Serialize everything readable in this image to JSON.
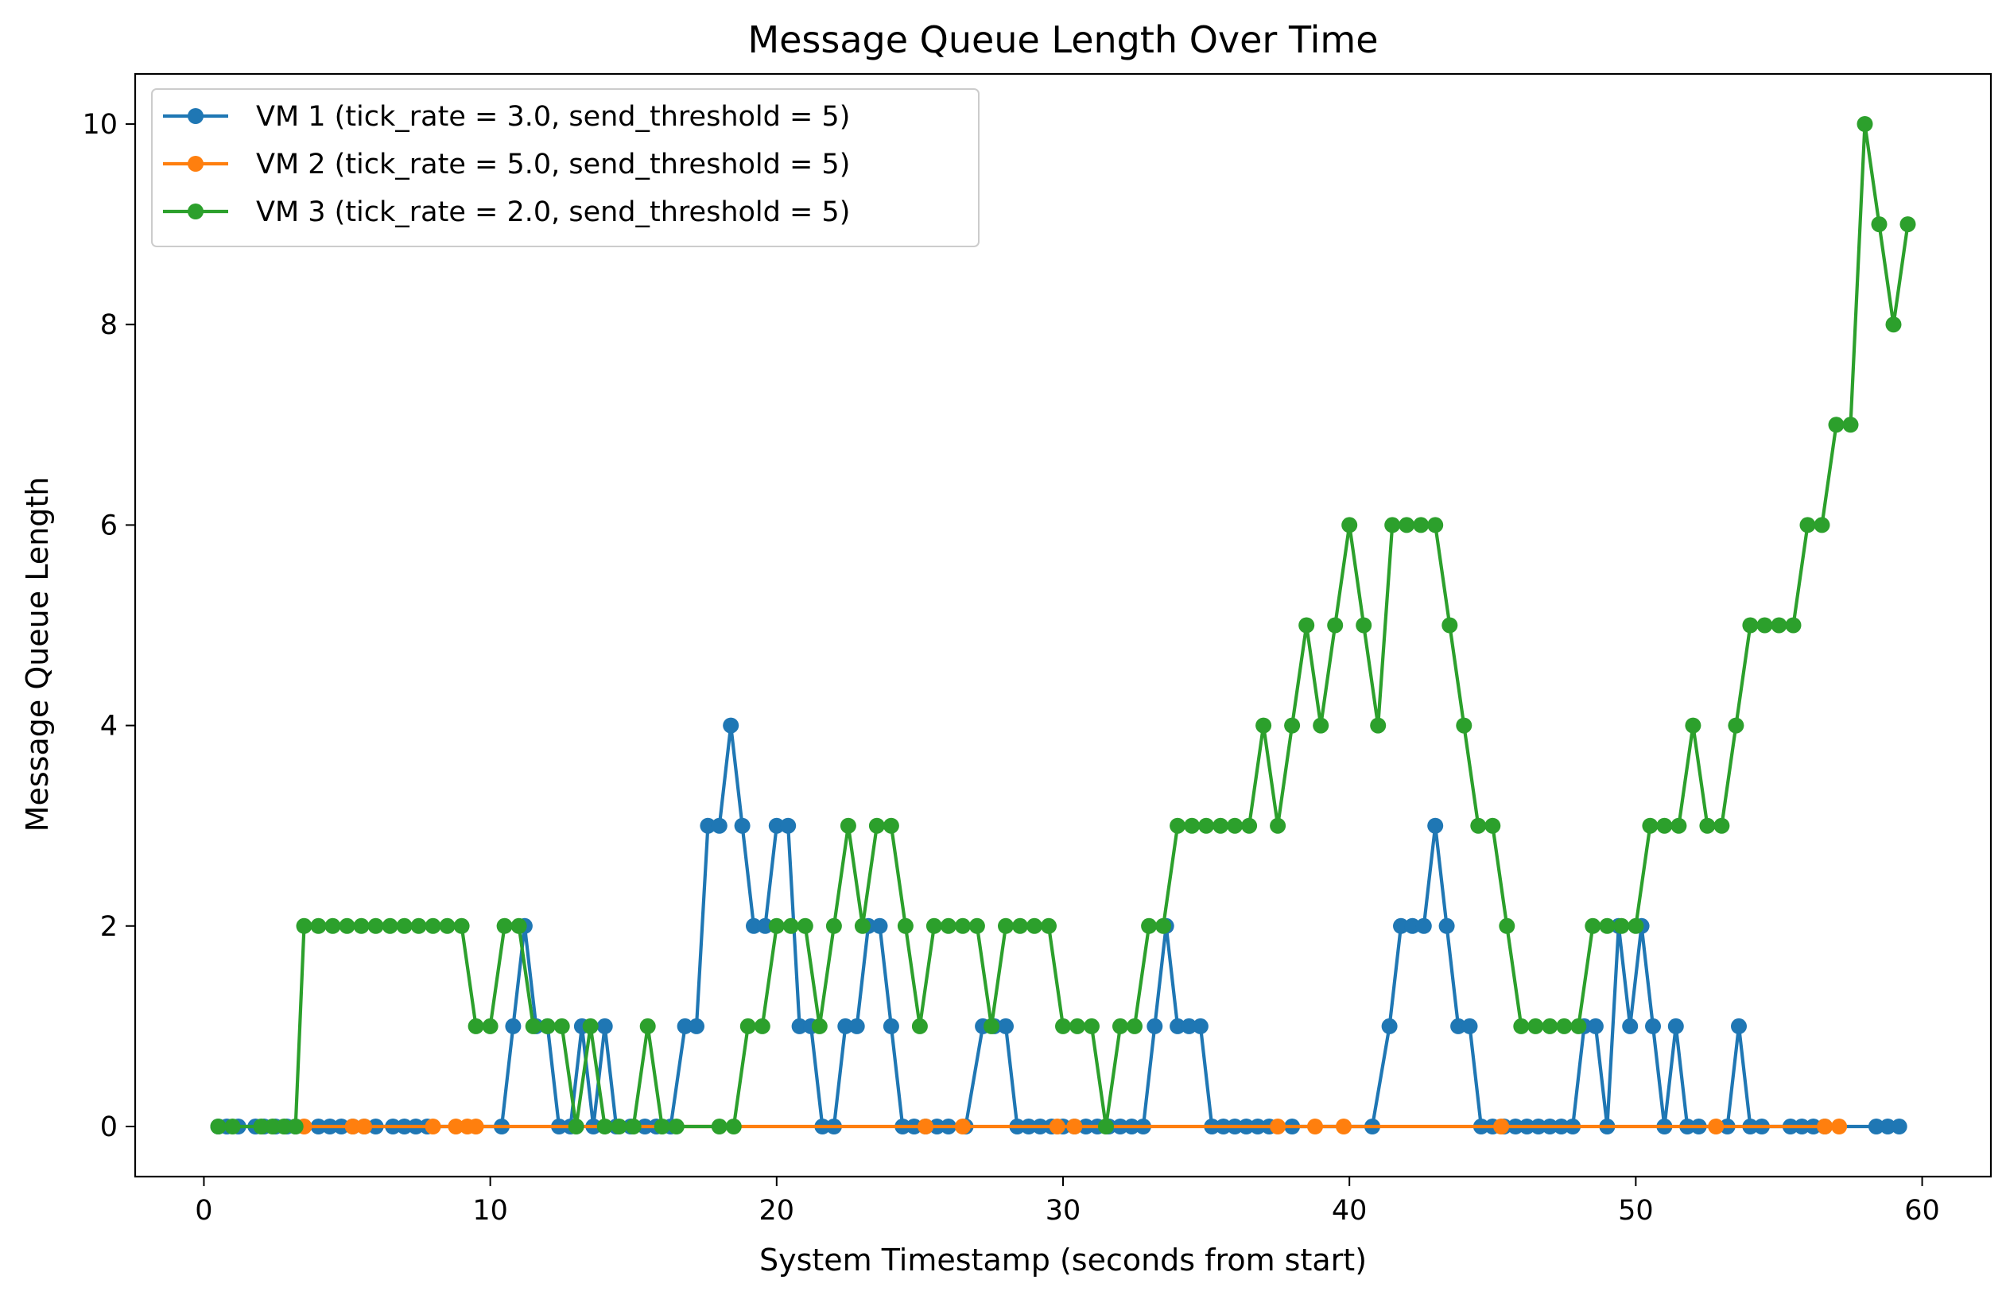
{
  "chart_data": {
    "type": "line",
    "title": "Message Queue Length Over Time",
    "xlabel": "System Timestamp (seconds from start)",
    "ylabel": "Message Queue Length",
    "xlim": [
      -2.4,
      62.4
    ],
    "ylim": [
      -0.5,
      10.5
    ],
    "xticks": [
      0,
      10,
      20,
      30,
      40,
      50,
      60
    ],
    "yticks": [
      0,
      2,
      4,
      6,
      8,
      10
    ],
    "grid": false,
    "legend_position": "upper left",
    "series": [
      {
        "name": "VM 1 (tick_rate = 3.0, send_threshold = 5)",
        "color": "#1f77b4",
        "marker": "circle",
        "x": [
          0.5,
          0.8,
          1.2,
          1.8,
          2.1,
          2.5,
          2.9,
          3.2,
          4.0,
          4.4,
          4.8,
          5.2,
          5.6,
          6.0,
          6.6,
          7.0,
          7.4,
          7.8,
          10.4,
          10.8,
          11.2,
          11.6,
          12.0,
          12.4,
          12.8,
          13.2,
          13.6,
          14.0,
          14.4,
          14.9,
          15.4,
          15.8,
          16.3,
          16.8,
          17.2,
          17.6,
          18.0,
          18.4,
          18.8,
          19.2,
          19.6,
          20.0,
          20.4,
          20.8,
          21.2,
          21.6,
          22.0,
          22.4,
          22.8,
          23.2,
          23.6,
          24.0,
          24.4,
          24.8,
          25.2,
          25.6,
          26.0,
          26.6,
          27.2,
          27.6,
          28.0,
          28.4,
          28.8,
          29.2,
          29.6,
          30.0,
          30.4,
          30.8,
          31.2,
          31.6,
          32.0,
          32.4,
          32.8,
          33.2,
          33.6,
          34.0,
          34.4,
          34.8,
          35.2,
          35.6,
          36.0,
          36.4,
          36.8,
          37.2,
          38.0,
          40.8,
          41.4,
          41.8,
          42.2,
          42.6,
          43.0,
          43.4,
          43.8,
          44.2,
          44.6,
          45.0,
          45.4,
          45.8,
          46.2,
          46.6,
          47.0,
          47.4,
          47.8,
          48.2,
          48.6,
          49.0,
          49.4,
          49.8,
          50.2,
          50.6,
          51.0,
          51.4,
          51.8,
          52.2,
          53.2,
          53.6,
          54.0,
          54.4,
          55.4,
          55.8,
          56.2,
          56.6,
          58.4,
          58.8,
          59.2
        ],
        "y": [
          0,
          0,
          0,
          0,
          0,
          0,
          0,
          0,
          0,
          0,
          0,
          0,
          0,
          0,
          0,
          0,
          0,
          0,
          0,
          1,
          2,
          1,
          1,
          0,
          0,
          1,
          0,
          1,
          0,
          0,
          0,
          0,
          0,
          1,
          1,
          3,
          3,
          4,
          3,
          2,
          2,
          3,
          3,
          1,
          1,
          0,
          0,
          1,
          1,
          2,
          2,
          1,
          0,
          0,
          0,
          0,
          0,
          0,
          1,
          1,
          1,
          0,
          0,
          0,
          0,
          0,
          0,
          0,
          0,
          0,
          0,
          0,
          0,
          1,
          2,
          1,
          1,
          1,
          0,
          0,
          0,
          0,
          0,
          0,
          0,
          0,
          1,
          2,
          2,
          2,
          3,
          2,
          1,
          1,
          0,
          0,
          0,
          0,
          0,
          0,
          0,
          0,
          0,
          1,
          1,
          0,
          2,
          1,
          2,
          1,
          0,
          1,
          0,
          0,
          0,
          1,
          0,
          0,
          0,
          0,
          0,
          0,
          0,
          0,
          0
        ]
      },
      {
        "name": "VM 2 (tick_rate = 5.0, send_threshold = 5)",
        "color": "#ff7f0e",
        "marker": "circle",
        "x": [
          3.5,
          5.2,
          5.6,
          8.0,
          8.8,
          9.2,
          9.5,
          25.2,
          26.5,
          29.8,
          30.4,
          37.5,
          38.8,
          39.8,
          45.3,
          52.8,
          56.6,
          57.1
        ],
        "y": [
          0,
          0,
          0,
          0,
          0,
          0,
          0,
          0,
          0,
          0,
          0,
          0,
          0,
          0,
          0,
          0,
          0,
          0
        ]
      },
      {
        "name": "VM 3 (tick_rate = 2.0, send_threshold = 5)",
        "color": "#2ca02c",
        "marker": "circle",
        "x": [
          0.5,
          1.0,
          2.0,
          2.4,
          2.8,
          3.2,
          3.5,
          4.0,
          4.5,
          5.0,
          5.5,
          6.0,
          6.5,
          7.0,
          7.5,
          8.0,
          8.5,
          9.0,
          9.5,
          10.0,
          10.5,
          11.0,
          11.5,
          12.0,
          12.5,
          13.0,
          13.5,
          14.0,
          14.5,
          15.0,
          15.5,
          16.0,
          16.5,
          18.0,
          18.5,
          19.0,
          19.5,
          20.0,
          20.5,
          21.0,
          21.5,
          22.0,
          22.5,
          23.0,
          23.5,
          24.0,
          24.5,
          25.0,
          25.5,
          26.0,
          26.5,
          27.0,
          27.5,
          28.0,
          28.5,
          29.0,
          29.5,
          30.0,
          30.5,
          31.0,
          31.5,
          32.0,
          32.5,
          33.0,
          33.5,
          34.0,
          34.5,
          35.0,
          35.5,
          36.0,
          36.5,
          37.0,
          37.5,
          38.0,
          38.5,
          39.0,
          39.5,
          40.0,
          40.5,
          41.0,
          41.5,
          42.0,
          42.5,
          43.0,
          43.5,
          44.0,
          44.5,
          45.0,
          45.5,
          46.0,
          46.5,
          47.0,
          47.5,
          48.0,
          48.5,
          49.0,
          49.5,
          50.0,
          50.5,
          51.0,
          51.5,
          52.0,
          52.5,
          53.0,
          53.5,
          54.0,
          54.5,
          55.0,
          55.5,
          56.0,
          56.5,
          57.0,
          57.5,
          58.0,
          58.5,
          59.0,
          59.5
        ],
        "y": [
          0,
          0,
          0,
          0,
          0,
          0,
          2,
          2,
          2,
          2,
          2,
          2,
          2,
          2,
          2,
          2,
          2,
          2,
          1,
          1,
          2,
          2,
          1,
          1,
          1,
          0,
          1,
          0,
          0,
          0,
          1,
          0,
          0,
          0,
          0,
          1,
          1,
          2,
          2,
          2,
          1,
          2,
          3,
          2,
          3,
          3,
          2,
          1,
          2,
          2,
          2,
          2,
          1,
          2,
          2,
          2,
          2,
          1,
          1,
          1,
          0,
          1,
          1,
          2,
          2,
          3,
          3,
          3,
          3,
          3,
          3,
          4,
          3,
          4,
          5,
          4,
          5,
          6,
          5,
          4,
          6,
          6,
          6,
          6,
          5,
          4,
          3,
          3,
          2,
          1,
          1,
          1,
          1,
          1,
          2,
          2,
          2,
          2,
          3,
          3,
          3,
          4,
          3,
          3,
          4,
          5,
          5,
          5,
          5,
          6,
          6,
          7,
          7,
          10,
          9,
          8,
          9
        ]
      }
    ]
  }
}
